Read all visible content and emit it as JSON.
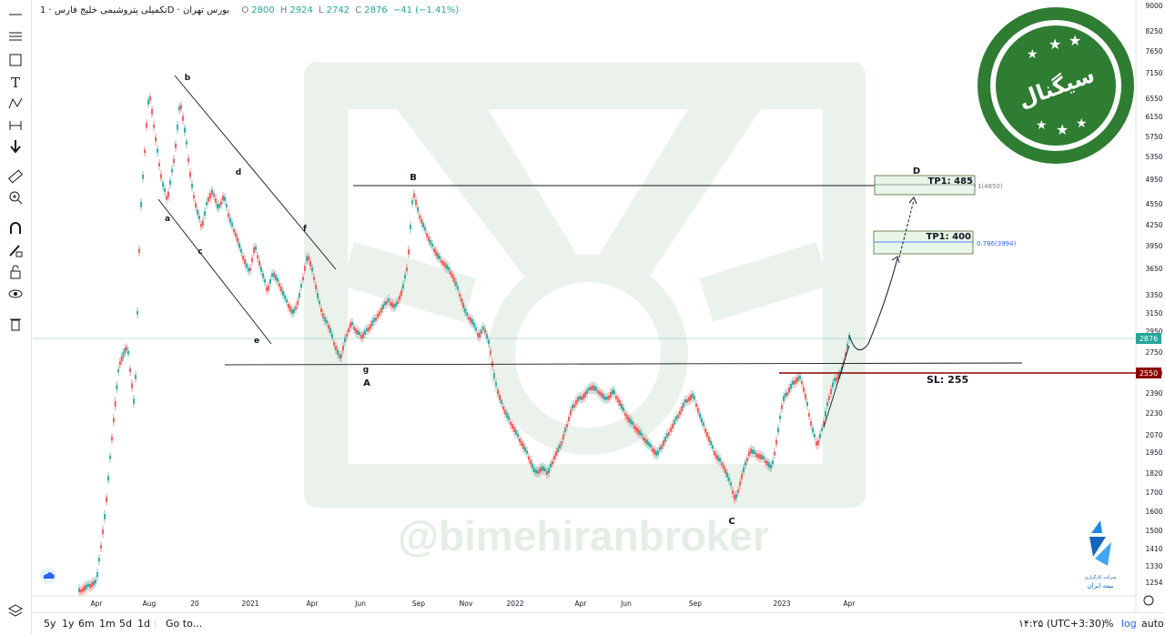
{
  "legend": {
    "symbol": "تکمیلی پتروشیمی خلیج فارس · 1D · بورس تهران",
    "o_label": "O",
    "o": "2800",
    "h_label": "H",
    "h": "2924",
    "l_label": "L",
    "l": "2742",
    "c_label": "C",
    "c": "2876",
    "change": "−41 (−1.41%)"
  },
  "colors": {
    "up": "#26a69a",
    "down": "#ef5350",
    "accent": "#2962ff",
    "stop": "#8b0000",
    "stamp": "#2e7d32"
  },
  "price_axis": {
    "ticks": [
      "9000",
      "8250",
      "7650",
      "7150",
      "6550",
      "6150",
      "5750",
      "5350",
      "4950",
      "4550",
      "4250",
      "3950",
      "3650",
      "3350",
      "3150",
      "2950",
      "2750",
      "2550",
      "2390",
      "2230",
      "2070",
      "1950",
      "1820",
      "1700",
      "1600",
      "1500",
      "1410",
      "1330",
      "1254"
    ],
    "current_price": "2876",
    "stop_price": "2550"
  },
  "time_axis": {
    "ticks": [
      "Apr",
      "Aug",
      "20",
      "2021",
      "Apr",
      "Jun",
      "Sep",
      "Nov",
      "2022",
      "Apr",
      "Jun",
      "Sep",
      "2023",
      "Apr"
    ]
  },
  "annotations": {
    "wave_labels": [
      "b",
      "a",
      "c",
      "d",
      "e",
      "f",
      "g",
      "A",
      "B",
      "C",
      "D"
    ],
    "tp1_upper": "TP1: 485",
    "tp1_lower": "TP1: 400",
    "fib_upper": "1(4850)",
    "fib_lower": "0.786(3994)",
    "stop_loss": "SL: 255"
  },
  "watermark": {
    "handle": "@bimehiranbroker"
  },
  "stamp": {
    "text": "سیگنال"
  },
  "logo": {
    "line1": "شرکت کارگزاری",
    "line2": "بیمه ایران"
  },
  "bottom_bar": {
    "ranges": [
      "5y",
      "1y",
      "6m",
      "1m",
      "5d",
      "1d"
    ],
    "goto": "Go to...",
    "time": "۱۴:۲۵ (UTC+3:30)",
    "percent": "%",
    "log": "log",
    "auto": "auto"
  }
}
